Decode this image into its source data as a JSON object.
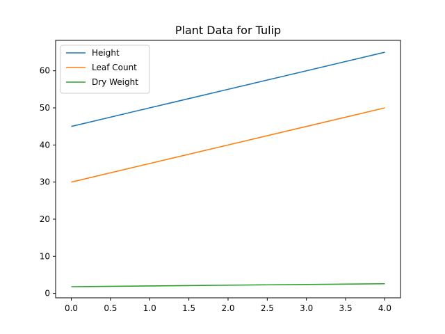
{
  "chart_data": {
    "type": "line",
    "title": "Plant Data for Tulip",
    "xlabel": "",
    "ylabel": "",
    "x": [
      0,
      1,
      2,
      3,
      4
    ],
    "xlim": [
      -0.2,
      4.2
    ],
    "ylim": [
      -1.2,
      68.2
    ],
    "x_ticks": [
      0.0,
      0.5,
      1.0,
      1.5,
      2.0,
      2.5,
      3.0,
      3.5,
      4.0
    ],
    "x_tick_labels": [
      "0.0",
      "0.5",
      "1.0",
      "1.5",
      "2.0",
      "2.5",
      "3.0",
      "3.5",
      "4.0"
    ],
    "y_ticks": [
      0,
      10,
      20,
      30,
      40,
      50,
      60
    ],
    "y_tick_labels": [
      "0",
      "10",
      "20",
      "30",
      "40",
      "50",
      "60"
    ],
    "grid": false,
    "legend_position": "upper-left",
    "series": [
      {
        "name": "Height",
        "color": "#1f77b4",
        "values": [
          45,
          50,
          55,
          60,
          65
        ]
      },
      {
        "name": "Leaf Count",
        "color": "#ff7f0e",
        "values": [
          30,
          35,
          40,
          45,
          50
        ]
      },
      {
        "name": "Dry Weight",
        "color": "#2ca02c",
        "values": [
          1.8,
          2.0,
          2.2,
          2.4,
          2.6
        ]
      }
    ]
  }
}
